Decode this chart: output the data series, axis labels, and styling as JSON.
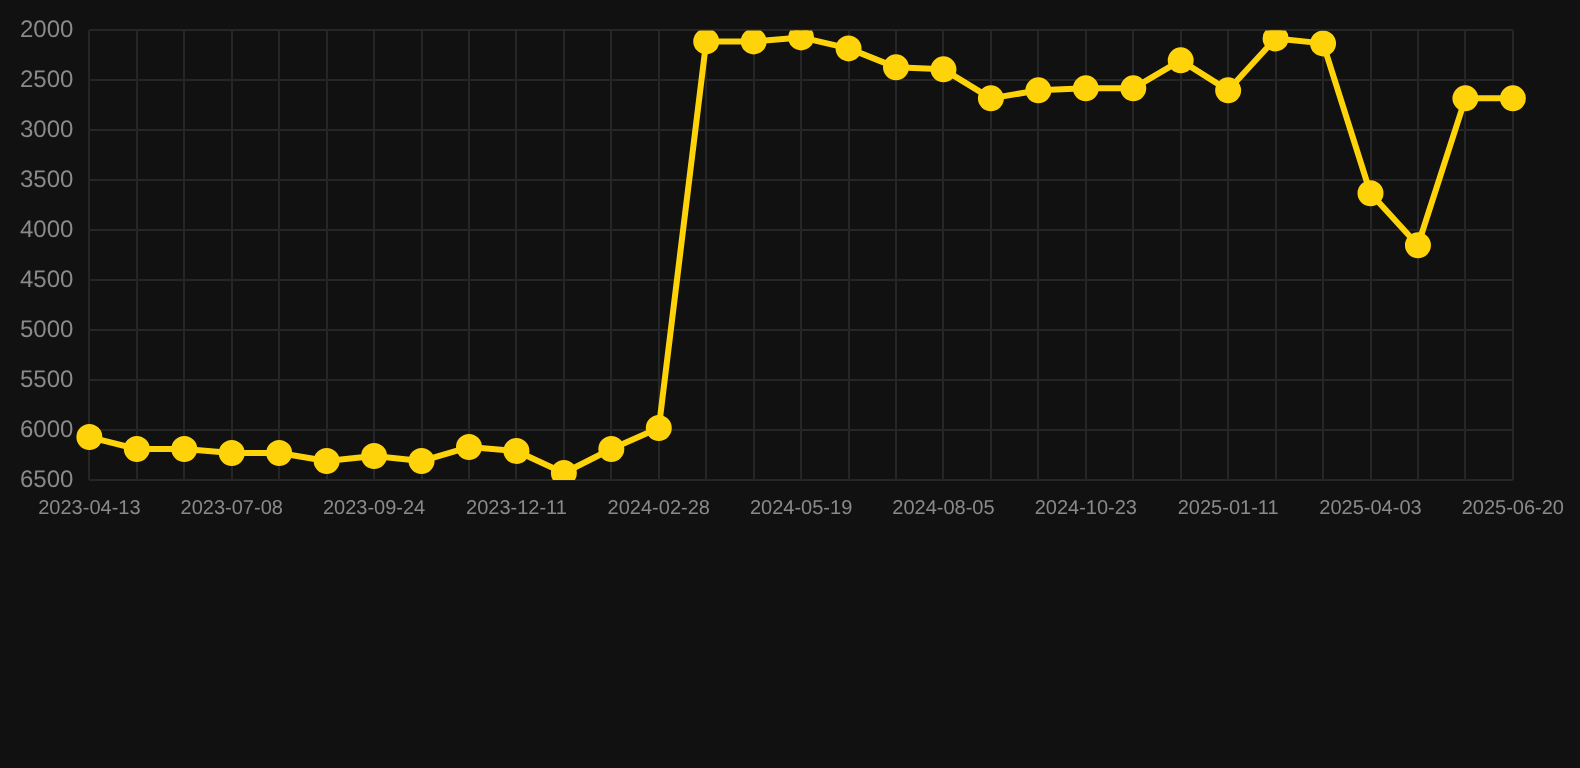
{
  "chart_data": {
    "type": "line",
    "categories": [
      "2023-04-13",
      null,
      null,
      "2023-07-08",
      null,
      null,
      "2023-09-24",
      null,
      null,
      "2023-12-11",
      null,
      null,
      "2024-02-28",
      null,
      null,
      "2024-05-19",
      null,
      null,
      "2024-08-05",
      null,
      null,
      "2024-10-23",
      null,
      null,
      "2025-01-11",
      null,
      null,
      "2025-04-03",
      null,
      null,
      "2025-06-20"
    ],
    "series": [
      {
        "color": "#ffd30a",
        "values": [
          6070,
          6190,
          6190,
          6230,
          6230,
          6310,
          6260,
          6310,
          6170,
          6210,
          6430,
          6190,
          5980,
          2110,
          2110,
          2070,
          2180,
          2370,
          2390,
          2680,
          2600,
          2580,
          2580,
          2300,
          2600,
          2080,
          2130,
          3630,
          4150,
          2680,
          2680
        ]
      }
    ],
    "ylim": [
      6500,
      2000
    ],
    "yticks": [
      2000,
      2500,
      3000,
      3500,
      4000,
      4500,
      5000,
      5500,
      6000,
      6500
    ],
    "grid": true,
    "legend": false,
    "marker": "circle",
    "line_style": "solid"
  }
}
